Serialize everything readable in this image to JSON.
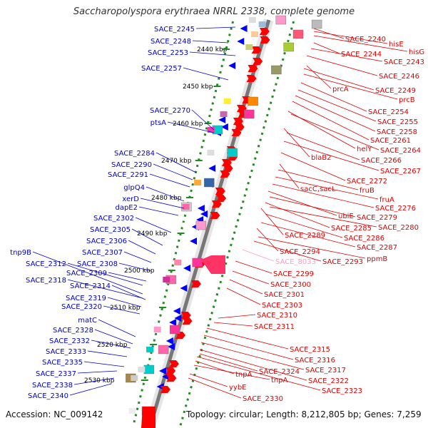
{
  "title": "Saccharopolyspora erythraea NRRL 2338, complete genome",
  "accession": "Accession: NC_009142",
  "topology": "Topology: circular; Length: 8,212,805 bp; Genes: 7,259",
  "kbp_labels": [
    "2440 kbp",
    "2450 kbp",
    "2460 kbp",
    "2470 kbp",
    "2480 kbp",
    "2490 kbp",
    "2500 kbp",
    "2510 kbp",
    "2520 kbp",
    "2530 kbp"
  ],
  "left_genes": [
    "SACE_2245",
    "SACE_2248",
    "SACE_2253",
    "SACE_2257",
    "SACE_2270",
    "ptsA",
    "SACE_2284",
    "SACE_2290",
    "SACE_2291",
    "glpQ4",
    "xerD",
    "dapE2",
    "SACE_2302",
    "SACE_2305",
    "SACE_2306",
    "SACE_2307",
    "tnp9B",
    "SACE_2312",
    "SACE_2308",
    "SACE_2309",
    "SACE_2318",
    "SACE_2314",
    "SACE_2319",
    "SACE_2320",
    "matC",
    "SACE_2328",
    "SACE_2332",
    "SACE_2333",
    "SACE_2335",
    "SACE_2337",
    "SACE_2338",
    "SACE_2340"
  ],
  "right_genes": [
    "SACE_2240",
    "hisE",
    "hisG",
    "SACE_2244",
    "SACE_2243",
    "SACE_2246",
    "prcA",
    "SACE_2249",
    "prcB",
    "SACE_2254",
    "SACE_2255",
    "SACE_2258",
    "SACE_2261",
    "helY",
    "SACE_2264",
    "blaB2",
    "SACE_2266",
    "SACE_2267",
    "SACE_2272",
    "sacC,sacL",
    "fruB",
    "fruA",
    "SACE_2276",
    "ubiE",
    "SACE_2279",
    "SACE_2285",
    "SACE_2280",
    "SACE_2289",
    "SACE_2286",
    "SACE_2287",
    "SACE_2294",
    "ppmB",
    "SACE_8033",
    "SACE_2293",
    "SACE_2299",
    "SACE_2300",
    "SACE_2301",
    "SACE_2303",
    "SACE_2310",
    "SACE_2311",
    "SACE_2315",
    "SACE_2316",
    "SACE_2317",
    "SACE_2324",
    "tnpA",
    "tnpA",
    "SACE_2322",
    "SACE_2323",
    "yybE",
    "SACE_2330"
  ],
  "colors": {
    "left_label": "#0000cc",
    "right_label": "#dd0000",
    "pink_label": "#ff99cc",
    "kbp_dots": "#228b22",
    "blue_gene": "#0000ff",
    "red_gene": "#ff0000",
    "backbone": "#777777"
  }
}
